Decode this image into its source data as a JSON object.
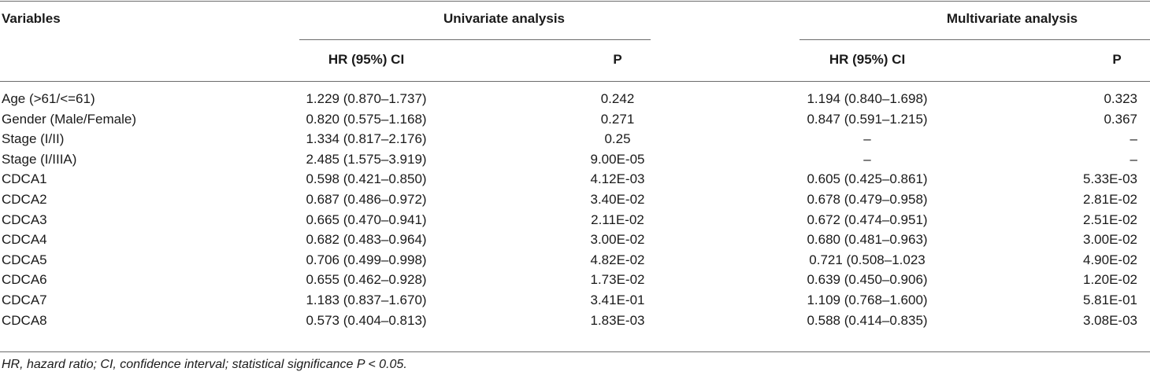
{
  "table": {
    "headers": {
      "variables": "Variables",
      "univariate": "Univariate analysis",
      "multivariate": "Multivariate analysis",
      "uni_hr": "HR (95%) CI",
      "uni_p": "P",
      "multi_hr": "HR (95%) CI",
      "multi_p": "P"
    },
    "rows": [
      {
        "variable": "Age (>61/<=61)",
        "uni_hr": "1.229 (0.870–1.737)",
        "uni_p": "0.242",
        "multi_hr": "1.194 (0.840–1.698)",
        "multi_p": "0.323"
      },
      {
        "variable": "Gender (Male/Female)",
        "uni_hr": "0.820 (0.575–1.168)",
        "uni_p": "0.271",
        "multi_hr": "0.847 (0.591–1.215)",
        "multi_p": "0.367"
      },
      {
        "variable": "Stage (I/II)",
        "uni_hr": "1.334 (0.817–2.176)",
        "uni_p": "0.25",
        "multi_hr": "–",
        "multi_p": "–"
      },
      {
        "variable": "Stage (I/IIIA)",
        "uni_hr": "2.485 (1.575–3.919)",
        "uni_p": "9.00E-05",
        "multi_hr": "–",
        "multi_p": "–"
      },
      {
        "variable": "CDCA1",
        "uni_hr": "0.598 (0.421–0.850)",
        "uni_p": "4.12E-03",
        "multi_hr": "0.605 (0.425–0.861)",
        "multi_p": "5.33E-03"
      },
      {
        "variable": "CDCA2",
        "uni_hr": "0.687 (0.486–0.972)",
        "uni_p": "3.40E-02",
        "multi_hr": "0.678 (0.479–0.958)",
        "multi_p": "2.81E-02"
      },
      {
        "variable": "CDCA3",
        "uni_hr": "0.665 (0.470–0.941)",
        "uni_p": "2.11E-02",
        "multi_hr": "0.672 (0.474–0.951)",
        "multi_p": "2.51E-02"
      },
      {
        "variable": "CDCA4",
        "uni_hr": "0.682 (0.483–0.964)",
        "uni_p": "3.00E-02",
        "multi_hr": "0.680 (0.481–0.963)",
        "multi_p": "3.00E-02"
      },
      {
        "variable": "CDCA5",
        "uni_hr": "0.706 (0.499–0.998)",
        "uni_p": "4.82E-02",
        "multi_hr": "0.721 (0.508–1.023",
        "multi_p": "4.90E-02"
      },
      {
        "variable": "CDCA6",
        "uni_hr": "0.655 (0.462–0.928)",
        "uni_p": "1.73E-02",
        "multi_hr": "0.639 (0.450–0.906)",
        "multi_p": "1.20E-02"
      },
      {
        "variable": "CDCA7",
        "uni_hr": "1.183 (0.837–1.670)",
        "uni_p": "3.41E-01",
        "multi_hr": "1.109 (0.768–1.600)",
        "multi_p": "5.81E-01"
      },
      {
        "variable": "CDCA8",
        "uni_hr": "0.573 (0.404–0.813)",
        "uni_p": "1.83E-03",
        "multi_hr": "0.588 (0.414–0.835)",
        "multi_p": "3.08E-03"
      }
    ],
    "footnote": "HR, hazard ratio; CI, confidence interval; statistical significance P < 0.05."
  }
}
